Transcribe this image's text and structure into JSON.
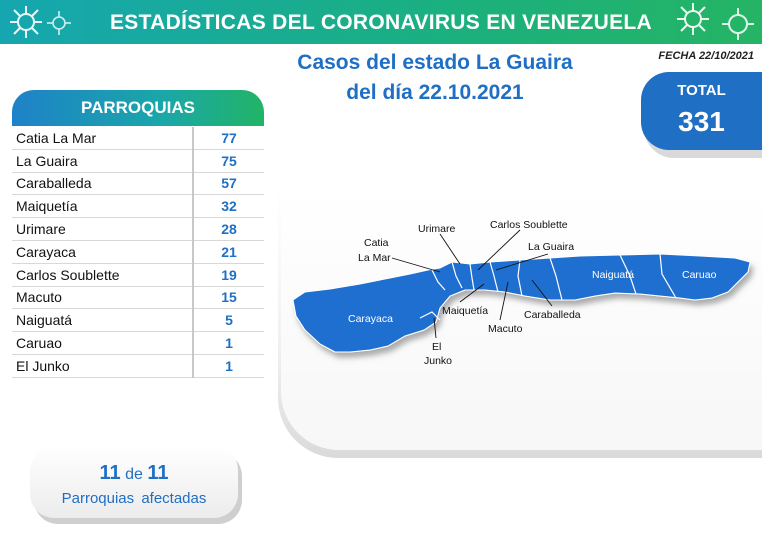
{
  "header": {
    "title": "ESTADÍSTICAS DEL CORONAVIRUS EN VENEZUELA",
    "decor_icon": "virus-icon"
  },
  "subtitle": {
    "line1": "Casos del estado La Guaira",
    "line2": "del día 22.10.2021"
  },
  "fecha": "FECHA 22/10/2021",
  "total": {
    "label": "TOTAL",
    "value": "331"
  },
  "parroquias": {
    "title": "PARROQUIAS",
    "rows": [
      {
        "name": "Catia La Mar",
        "value": "77"
      },
      {
        "name": "La Guaira",
        "value": "75"
      },
      {
        "name": "Caraballeda",
        "value": "57"
      },
      {
        "name": "Maiquetía",
        "value": "32"
      },
      {
        "name": "Urimare",
        "value": "28"
      },
      {
        "name": "Carayaca",
        "value": "21"
      },
      {
        "name": "Carlos Soublette",
        "value": "19"
      },
      {
        "name": "Macuto",
        "value": "15"
      },
      {
        "name": "Naiguatá",
        "value": "5"
      },
      {
        "name": "Caruao",
        "value": "1"
      },
      {
        "name": "El Junko",
        "value": "1"
      }
    ]
  },
  "afectadas": {
    "count": "11",
    "of": "de",
    "total": "11",
    "label": "Parroquias afectadas"
  },
  "map": {
    "fill_color": "#1f6fd0",
    "labels": {
      "carayaca": "Carayaca",
      "naiguata": "Naiguatá",
      "caruao": "Caruao",
      "catia_1": "Catia",
      "catia_2": "La Mar",
      "urimare": "Urimare",
      "carlos": "Carlos Soublette",
      "laguaira": "La Guaira",
      "maiquetia": "Maiquetía",
      "macuto": "Macuto",
      "caraballeda": "Caraballeda",
      "junko_1": "El",
      "junko_2": "Junko"
    }
  }
}
